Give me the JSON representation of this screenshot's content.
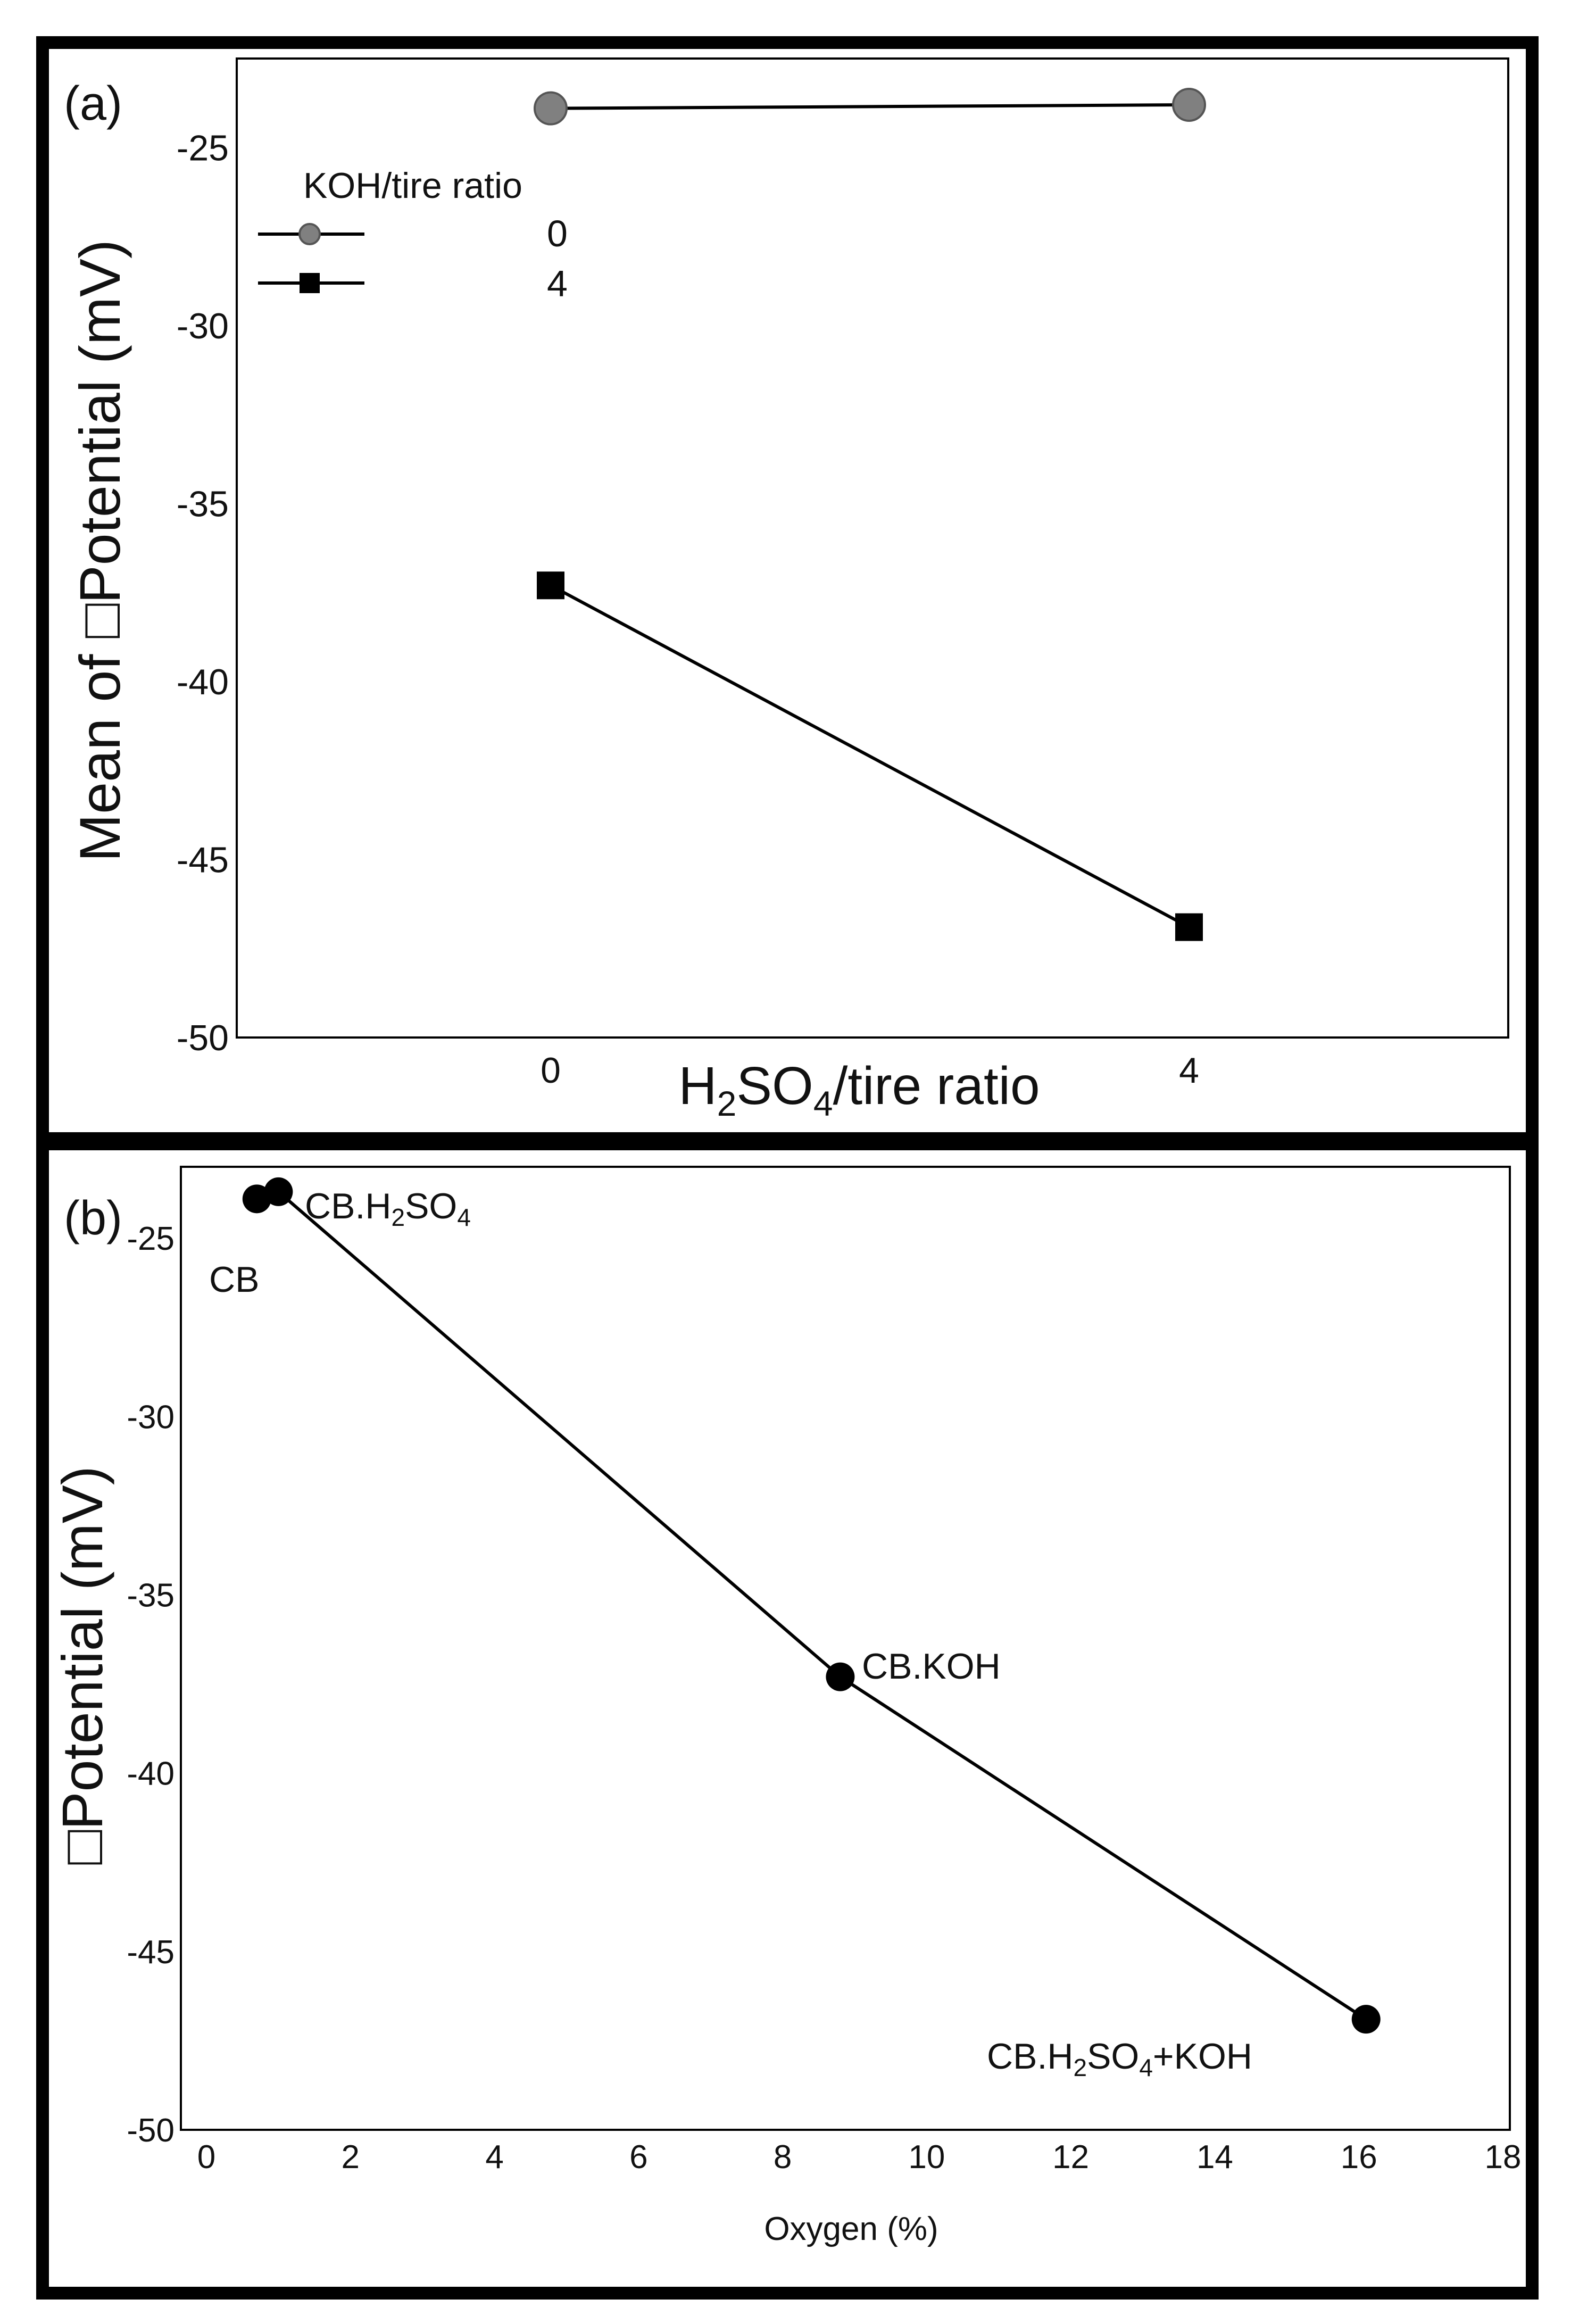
{
  "chart_data": [
    {
      "panel_label": "(a)",
      "type": "line",
      "xlabel": {
        "main": "H",
        "sub1": "2",
        "mid": "SO",
        "sub2": "4",
        "tail": "/tire ratio"
      },
      "ylabel": "Mean of □Potential (mV)",
      "categories": [
        "0",
        "4"
      ],
      "ylim": [
        -50,
        -22.5
      ],
      "yticks": [
        -25,
        -30,
        -35,
        -40,
        -45,
        -50
      ],
      "legend": {
        "title": "KOH/tire ratio",
        "position": "top-left"
      },
      "series": [
        {
          "name": "0",
          "marker": "circle",
          "color": "#808080",
          "values": [
            -23.9,
            -23.8
          ]
        },
        {
          "name": "4",
          "marker": "square",
          "color": "#000000",
          "values": [
            -37.3,
            -46.9
          ]
        }
      ]
    },
    {
      "panel_label": "(b)",
      "type": "line",
      "xlabel": "Oxygen (%)",
      "ylabel": "□Potential (mV)",
      "xlim": [
        0,
        18
      ],
      "ylim": [
        -50,
        -23
      ],
      "xticks": [
        0,
        2,
        4,
        6,
        8,
        10,
        12,
        14,
        16,
        18
      ],
      "yticks": [
        -25,
        -30,
        -35,
        -40,
        -45,
        -50
      ],
      "points": [
        {
          "label": "CB",
          "x": 0.7,
          "y": -23.9
        },
        {
          "label": "CB.H2SO4",
          "label_main": "CB.H",
          "label_sub1": "2",
          "label_mid": "SO",
          "label_sub2": "4",
          "x": 1.0,
          "y": -23.7
        },
        {
          "label": "CB.KOH",
          "x": 8.8,
          "y": -37.3
        },
        {
          "label": "CB.H2SO4+KOH",
          "label_main": "CB.H",
          "label_sub1": "2",
          "label_mid": "SO",
          "label_sub2": "4",
          "label_tail": "+KOH",
          "x": 16.1,
          "y": -46.9
        }
      ]
    }
  ]
}
